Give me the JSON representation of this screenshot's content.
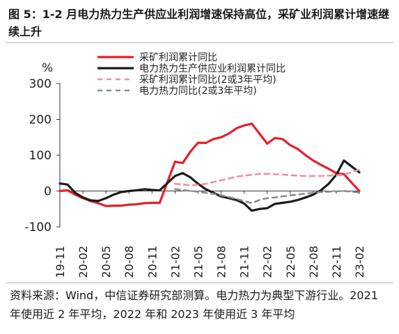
{
  "figure": {
    "title": "图 5：1-2 月电力热力生产供应业利润增速保持高位，采矿业利润累计增速继续上升",
    "source": "资料来源：Wind，中信证券研究部测算。电力热力为典型下游行业。2021 年使用近 2 年平均，2022 年和 2023 年使用近 3 年平均"
  },
  "chart_data": {
    "type": "line",
    "ylabel": "%",
    "ylim": [
      -100,
      300
    ],
    "yticks": [
      -100,
      0,
      100,
      200,
      300
    ],
    "grid": false,
    "legend_position": "top",
    "tick_labels": [
      "19-11",
      "20-02",
      "20-05",
      "20-08",
      "20-11",
      "21-02",
      "21-05",
      "21-08",
      "21-11",
      "22-02",
      "22-05",
      "22-08",
      "22-11",
      "23-02"
    ],
    "x": [
      "19-11",
      "19-12",
      "20-01",
      "20-02",
      "20-03",
      "20-04",
      "20-05",
      "20-06",
      "20-07",
      "20-08",
      "20-09",
      "20-10",
      "20-11",
      "20-12",
      "21-01",
      "21-02",
      "21-03",
      "21-04",
      "21-05",
      "21-06",
      "21-07",
      "21-08",
      "21-09",
      "21-10",
      "21-11",
      "21-12",
      "22-01",
      "22-02",
      "22-03",
      "22-04",
      "22-05",
      "22-06",
      "22-07",
      "22-08",
      "22-09",
      "22-10",
      "22-11",
      "22-12",
      "23-01",
      "23-02"
    ],
    "series": [
      {
        "name": "采矿利润累计同比",
        "color": "#e3202b",
        "dash": "solid",
        "values": [
          0,
          2,
          -10,
          -20,
          -28,
          -34,
          -42,
          -41,
          -41,
          -38,
          -37,
          -34,
          -33,
          -33,
          null,
          82,
          78,
          110,
          135,
          134,
          145,
          150,
          160,
          175,
          183,
          188,
          160,
          132,
          148,
          145,
          128,
          117,
          100,
          85,
          73,
          62,
          50,
          47,
          null,
          0
        ]
      },
      {
        "name": "电力热力生产供应业利润累计同比",
        "color": "#1c1c1c",
        "dash": "solid",
        "values": [
          21,
          18,
          -5,
          -18,
          -26,
          -28,
          -20,
          -10,
          -3,
          0,
          2,
          5,
          3,
          2,
          null,
          42,
          50,
          38,
          20,
          5,
          -5,
          -15,
          -20,
          -25,
          -35,
          -55,
          -50,
          -48,
          -36,
          -33,
          -30,
          -25,
          -18,
          -10,
          2,
          20,
          45,
          85,
          null,
          52
        ]
      },
      {
        "name": "采矿利润累计同比(2或3年平均)",
        "color": "#f28f9a",
        "dash": "dashed",
        "values": [
          null,
          null,
          null,
          null,
          null,
          null,
          null,
          null,
          null,
          null,
          null,
          null,
          null,
          null,
          null,
          20,
          18,
          16,
          17,
          20,
          25,
          30,
          35,
          40,
          43,
          45,
          48,
          48,
          47,
          46,
          44,
          43,
          42,
          42,
          42,
          43,
          44,
          45,
          null,
          60
        ]
      },
      {
        "name": "电力热力同比(2或3年平均)",
        "color": "#8a8a8a",
        "dash": "dashed",
        "values": [
          null,
          null,
          null,
          null,
          null,
          null,
          null,
          null,
          null,
          null,
          null,
          null,
          null,
          null,
          null,
          5,
          3,
          0,
          -2,
          -5,
          -8,
          -12,
          -17,
          -22,
          -28,
          -34,
          -25,
          -20,
          -18,
          -15,
          -12,
          -10,
          -7,
          -5,
          -3,
          -2,
          -1,
          0,
          null,
          -4
        ]
      }
    ]
  }
}
